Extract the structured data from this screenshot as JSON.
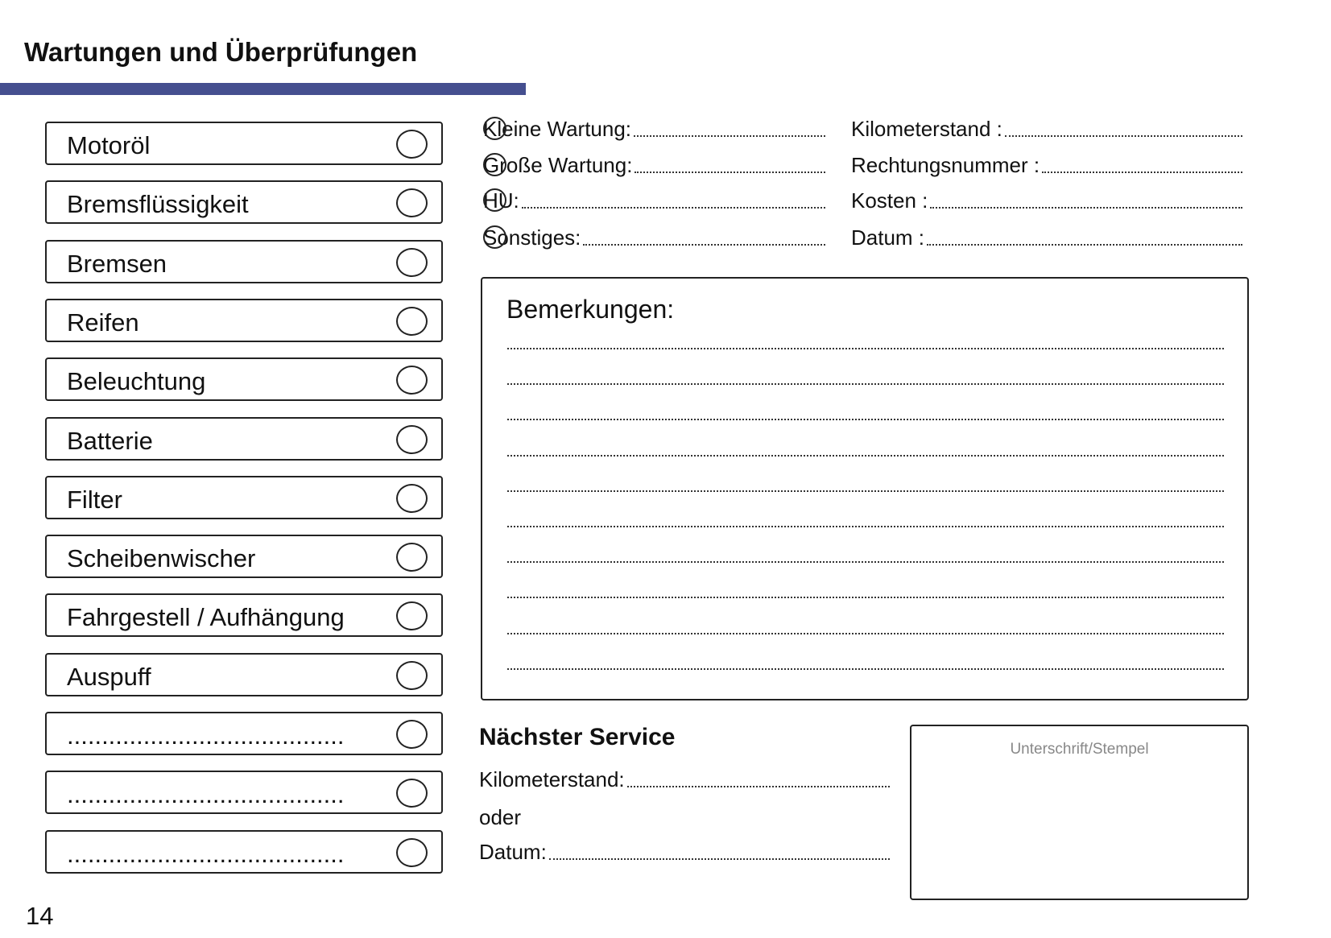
{
  "header": {
    "title": "Wartungen und Überprüfungen",
    "accent_color": "#454f8f"
  },
  "checklist": [
    {
      "label": "Motoröl",
      "checked": false
    },
    {
      "label": "Bremsflüssigkeit",
      "checked": false
    },
    {
      "label": "Bremsen",
      "checked": false
    },
    {
      "label": "Reifen",
      "checked": false
    },
    {
      "label": "Beleuchtung",
      "checked": false
    },
    {
      "label": "Batterie",
      "checked": false
    },
    {
      "label": "Filter",
      "checked": false
    },
    {
      "label": "Scheibenwischer",
      "checked": false
    },
    {
      "label": "Fahrgestell / Aufhängung",
      "checked": false
    },
    {
      "label": "Auspuff",
      "checked": false
    },
    {
      "label": "........................................",
      "checked": false
    },
    {
      "label": "........................................",
      "checked": false
    },
    {
      "label": "........................................",
      "checked": false
    }
  ],
  "service_type": [
    {
      "label": "Kleine Wartung:"
    },
    {
      "label": "Große Wartung:"
    },
    {
      "label": "HU:"
    },
    {
      "label": "Sonstiges:"
    }
  ],
  "details": [
    {
      "label": "Kilometerstand :"
    },
    {
      "label": "Rechtungsnummer :"
    },
    {
      "label": "Kosten :"
    },
    {
      "label": "Datum :"
    }
  ],
  "remarks": {
    "title": "Bemerkungen:"
  },
  "next_service": {
    "title": "Nächster Service",
    "mileage_label": "Kilometerstand:",
    "or_label": "oder",
    "date_label": "Datum:"
  },
  "signature": {
    "label": "Unterschrift/Stempel"
  },
  "page_number": "14"
}
